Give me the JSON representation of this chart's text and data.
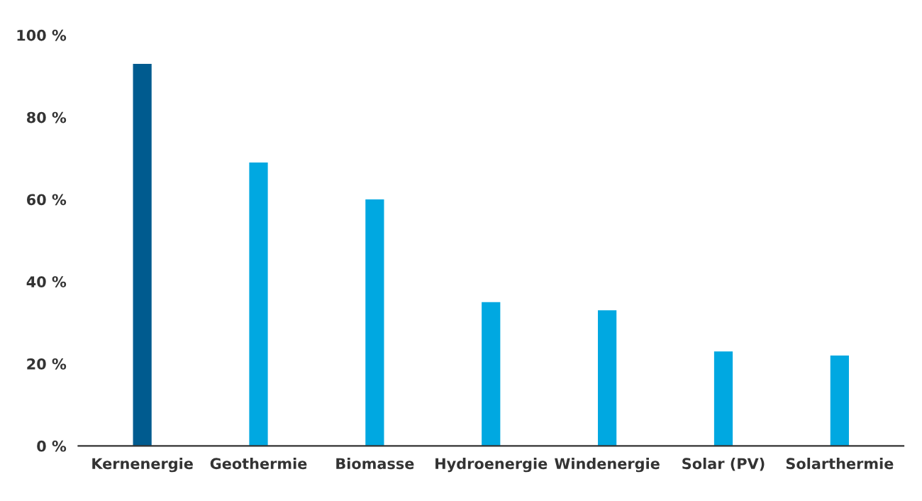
{
  "chart_data": {
    "type": "bar",
    "categories": [
      "Kernenergie",
      "Geothermie",
      "Biomasse",
      "Hydroenergie",
      "Windenergie",
      "Solar (PV)",
      "Solarthermie"
    ],
    "values": [
      93,
      69,
      60,
      35,
      33,
      23,
      22
    ],
    "colors": [
      "#005b8f",
      "#00a8e1",
      "#00a8e1",
      "#00a8e1",
      "#00a8e1",
      "#00a8e1",
      "#00a8e1"
    ],
    "ylim": [
      0,
      100
    ],
    "yticks": [
      {
        "value": 0,
        "label": "0 %"
      },
      {
        "value": 20,
        "label": "20 %"
      },
      {
        "value": 40,
        "label": "40 %"
      },
      {
        "value": 60,
        "label": "60 %"
      },
      {
        "value": 80,
        "label": "80 %"
      },
      {
        "value": 100,
        "label": "100 %"
      }
    ],
    "grid": false
  }
}
